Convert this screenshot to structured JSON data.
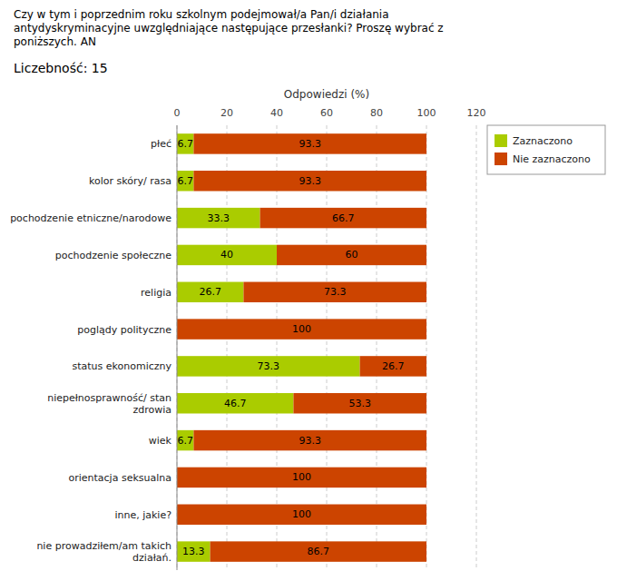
{
  "chart_data": {
    "type": "bar",
    "orientation": "horizontal",
    "stacked": true,
    "title": "Czy w tym i poprzednim roku szkolnym podejmował/a Pan/i działania\nantydyskryminacyjne uwzględniające następujące przesłanki? Proszę wybrać z\nponiższych. AN",
    "subtitle": "Liczebność: 15",
    "xlabel": "Odpowiedzi (%)",
    "categories": [
      "płeć",
      "kolor skóry/ rasa",
      "pochodzenie etniczne/narodowe",
      "pochodzenie społeczne",
      "religia",
      "poglądy polityczne",
      "status ekonomiczny",
      "niepełnosprawność/ stan\nzdrowia",
      "wiek",
      "orientacja seksualna",
      "inne, jakie?",
      "nie prowadziłem/am takich\ndziałań."
    ],
    "series": [
      {
        "name": "Zaznaczono",
        "color": "#aacc00",
        "values": [
          6.7,
          6.7,
          33.3,
          40,
          26.7,
          0,
          73.3,
          46.7,
          6.7,
          0,
          0,
          13.3
        ]
      },
      {
        "name": "Nie zaznaczono",
        "color": "#cc4400",
        "values": [
          93.3,
          93.3,
          66.7,
          60,
          73.3,
          100,
          26.7,
          53.3,
          93.3,
          100,
          100,
          86.7
        ]
      }
    ],
    "xlim": [
      0,
      120
    ],
    "xticks": [
      0,
      20,
      40,
      60,
      80,
      100,
      120
    ],
    "grid": true,
    "legend": "upper right",
    "data_labels": true
  }
}
